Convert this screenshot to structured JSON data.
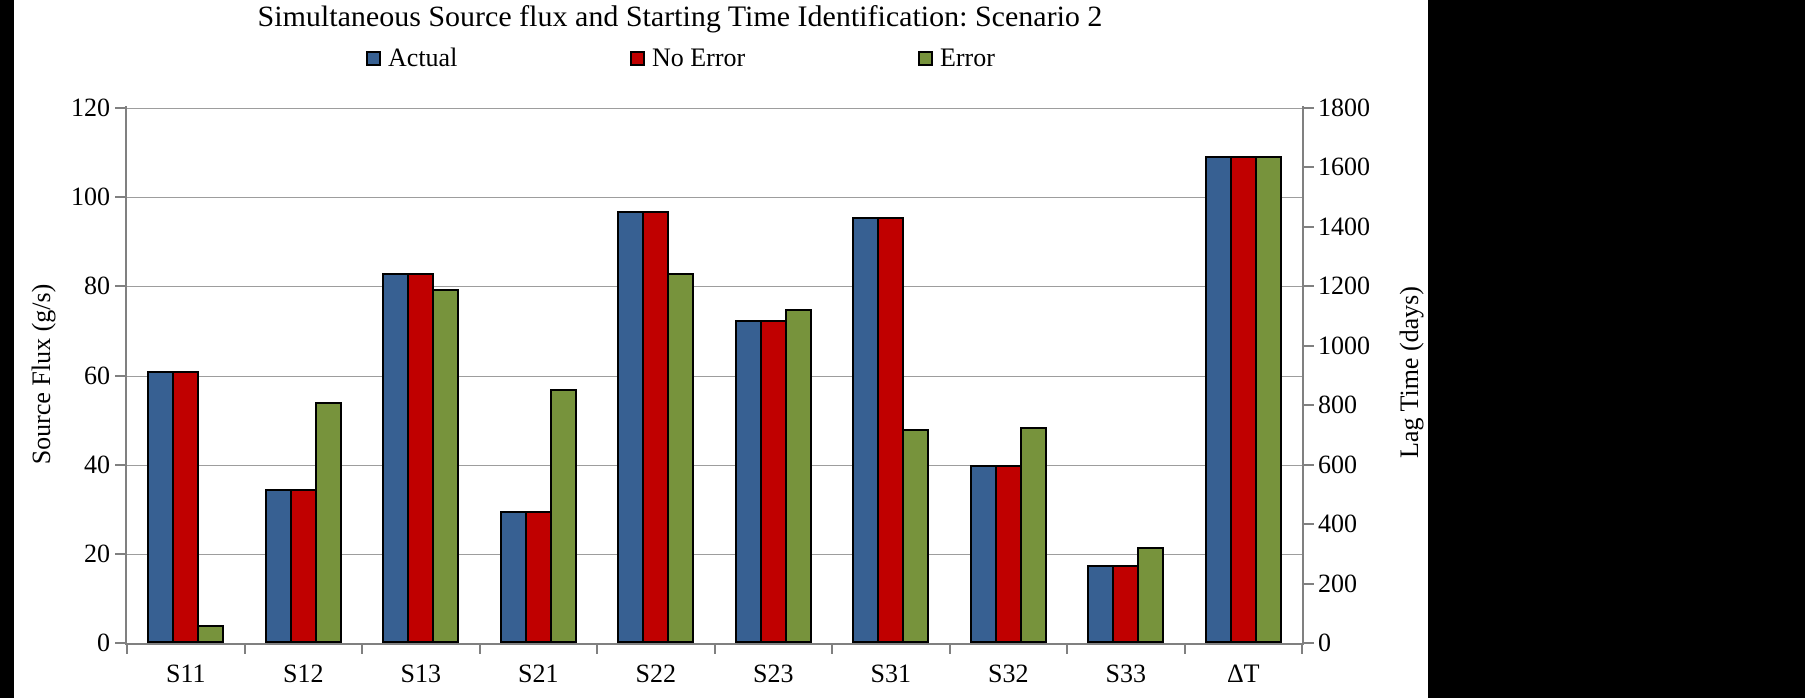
{
  "title": "Simultaneous Source flux and Starting Time Identification: Scenario 2",
  "legend": [
    {
      "label": "Actual",
      "color": "#376092"
    },
    {
      "label": "No Error",
      "color": "#C00000"
    },
    {
      "label": "Error",
      "color": "#77933C"
    }
  ],
  "colors": {
    "actual": "#376092",
    "no_error": "#C00000",
    "error": "#77933C",
    "gridline": "#9d9d9d",
    "axis": "#808080",
    "bar_border": "#000000",
    "background": "#ffffff",
    "letterbox": "#000000"
  },
  "chart_data": {
    "type": "bar",
    "title": "Simultaneous Source flux and Starting Time Identification: Scenario 2",
    "categories": [
      "S11",
      "S12",
      "S13",
      "S21",
      "S22",
      "S23",
      "S31",
      "S32",
      "S33",
      "ΔT"
    ],
    "series": [
      {
        "name": "Actual",
        "color": "#376092",
        "source_flux": [
          61,
          34.5,
          83,
          29.5,
          97,
          72.5,
          95.5,
          40,
          17.5
        ],
        "lag_time_days": 1640
      },
      {
        "name": "No Error",
        "color": "#C00000",
        "source_flux": [
          61,
          34.5,
          83,
          29.5,
          97,
          72.5,
          95.5,
          40,
          17.5
        ],
        "lag_time_days": 1640
      },
      {
        "name": "Error",
        "color": "#77933C",
        "source_flux": [
          4,
          54,
          79.5,
          57,
          83,
          75,
          48,
          48.5,
          21.5
        ],
        "lag_time_days": 1640
      }
    ],
    "left_axis": {
      "label": "Source Flux (g/s)",
      "min": 0,
      "max": 120,
      "ticks": [
        0,
        20,
        40,
        60,
        80,
        100,
        120
      ]
    },
    "right_axis": {
      "label": "Lag Time (days)",
      "min": 0,
      "max": 1800,
      "ticks": [
        0,
        200,
        400,
        600,
        800,
        1000,
        1200,
        1400,
        1600,
        1800
      ]
    },
    "delta_t_category_axis": "right",
    "grid": "horizontal-on-left-axis-steps",
    "legend_position": "top"
  }
}
